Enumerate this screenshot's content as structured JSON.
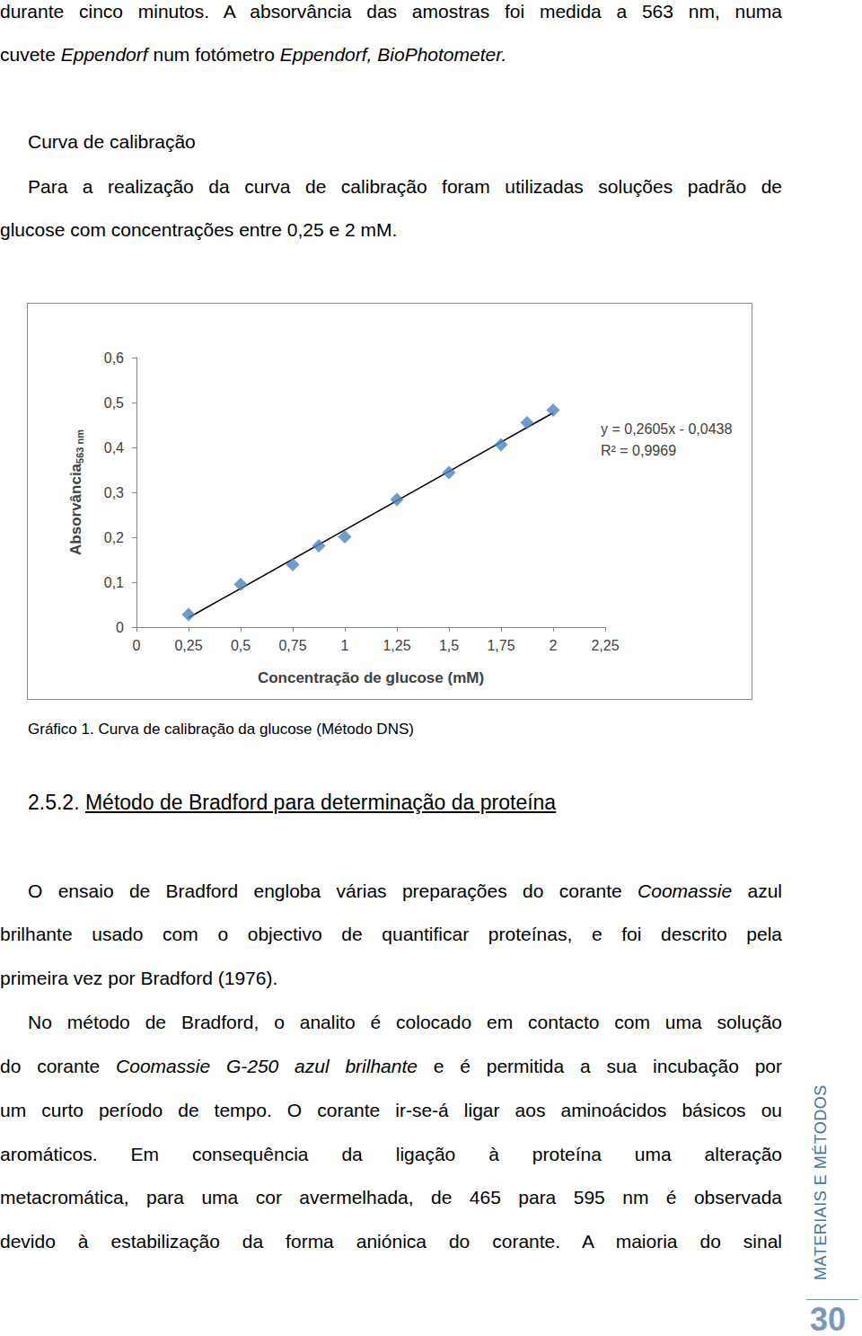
{
  "page": {
    "top_lines": [
      [
        "durante cinco minutos. A absorvância das amostras foi medida a 563 nm, numa"
      ],
      [
        "cuvete ",
        {
          "text": "Eppendorf",
          "italic": true
        },
        " num fotómetro ",
        {
          "text": "Eppendorf, BioPhotometer.",
          "italic": true
        }
      ]
    ],
    "section": {
      "title": "Curva de calibração",
      "lines": [
        [
          "Para a realização da curva de calibração foram utilizadas soluções padrão de"
        ],
        [
          "glucose com concentrações entre 0,25 e 2 mM."
        ]
      ]
    },
    "caption": "Gráfico 1. Curva de calibração da glucose (Método DNS)",
    "heading": {
      "number": "2.5.2.",
      "title": "Método de Bradford para determinação da proteína"
    },
    "paragraphs": [
      [
        [
          "O ensaio de Bradford engloba várias preparações do corante ",
          {
            "text": "Coomassie",
            "italic": true
          },
          " azul"
        ],
        [
          "brilhante usado com o objectivo de quantificar proteínas, e foi descrito pela"
        ],
        [
          "primeira vez por Bradford (1976)."
        ]
      ],
      [
        [
          "No método de Bradford, o analito é colocado em contacto com uma solução"
        ],
        [
          "do corante ",
          {
            "text": "Coomassie G-250 azul brilhante",
            "italic": true
          },
          " e é permitida a sua incubação por"
        ],
        [
          "um curto período de tempo. O corante ir-se-á ligar aos aminoácidos básicos ou"
        ],
        [
          "aromáticos. Em consequência da ligação à proteína uma alteração"
        ],
        [
          "metacromática, para uma cor avermelhada, de 465 para 595 nm é observada"
        ],
        [
          "devido à estabilização da forma aniónica do corante. A maioria do sinal"
        ]
      ]
    ],
    "side_label": "MATERIAIS E MÉTODOS",
    "page_number": 30
  },
  "chart_data": {
    "type": "scatter",
    "x_label": "Concentração de glucose (mM)",
    "y_label": "Absorvância",
    "y_label_subscript": "563 nm",
    "x": [
      0.25,
      0.5,
      0.75,
      0.875,
      1.0,
      1.25,
      1.5,
      1.75,
      1.875,
      2.0
    ],
    "values": [
      0.028,
      0.095,
      0.139,
      0.181,
      0.201,
      0.284,
      0.344,
      0.406,
      0.455,
      0.483
    ],
    "color": "#4f81bd",
    "marker": "diamond",
    "trendline": {
      "x": [
        0.25,
        2.0
      ],
      "y": [
        0.021,
        0.477
      ],
      "color": "#000000"
    },
    "annotations": [
      "y = 0,2605x - 0,0438",
      "R² = 0,9969"
    ],
    "xlim": [
      0,
      2.25
    ],
    "xticks": [
      0,
      {
        "value": 0.25,
        "label": "0,25"
      },
      {
        "value": 0.5,
        "label": "0,5"
      },
      {
        "value": 0.75,
        "label": "0,75"
      },
      1,
      {
        "value": 1.25,
        "label": "1,25"
      },
      {
        "value": 1.5,
        "label": "1,5"
      },
      {
        "value": 1.75,
        "label": "1,75"
      },
      2,
      {
        "value": 2.25,
        "label": "2,25"
      }
    ],
    "ylim": [
      0,
      0.6
    ],
    "yticks": [
      0,
      {
        "value": 0.1,
        "label": "0,1"
      },
      {
        "value": 0.2,
        "label": "0,2"
      },
      {
        "value": 0.3,
        "label": "0,3"
      },
      {
        "value": 0.4,
        "label": "0,4"
      },
      {
        "value": 0.5,
        "label": "0,5"
      },
      {
        "value": 0.6,
        "label": "0,6"
      }
    ],
    "grid": false
  }
}
